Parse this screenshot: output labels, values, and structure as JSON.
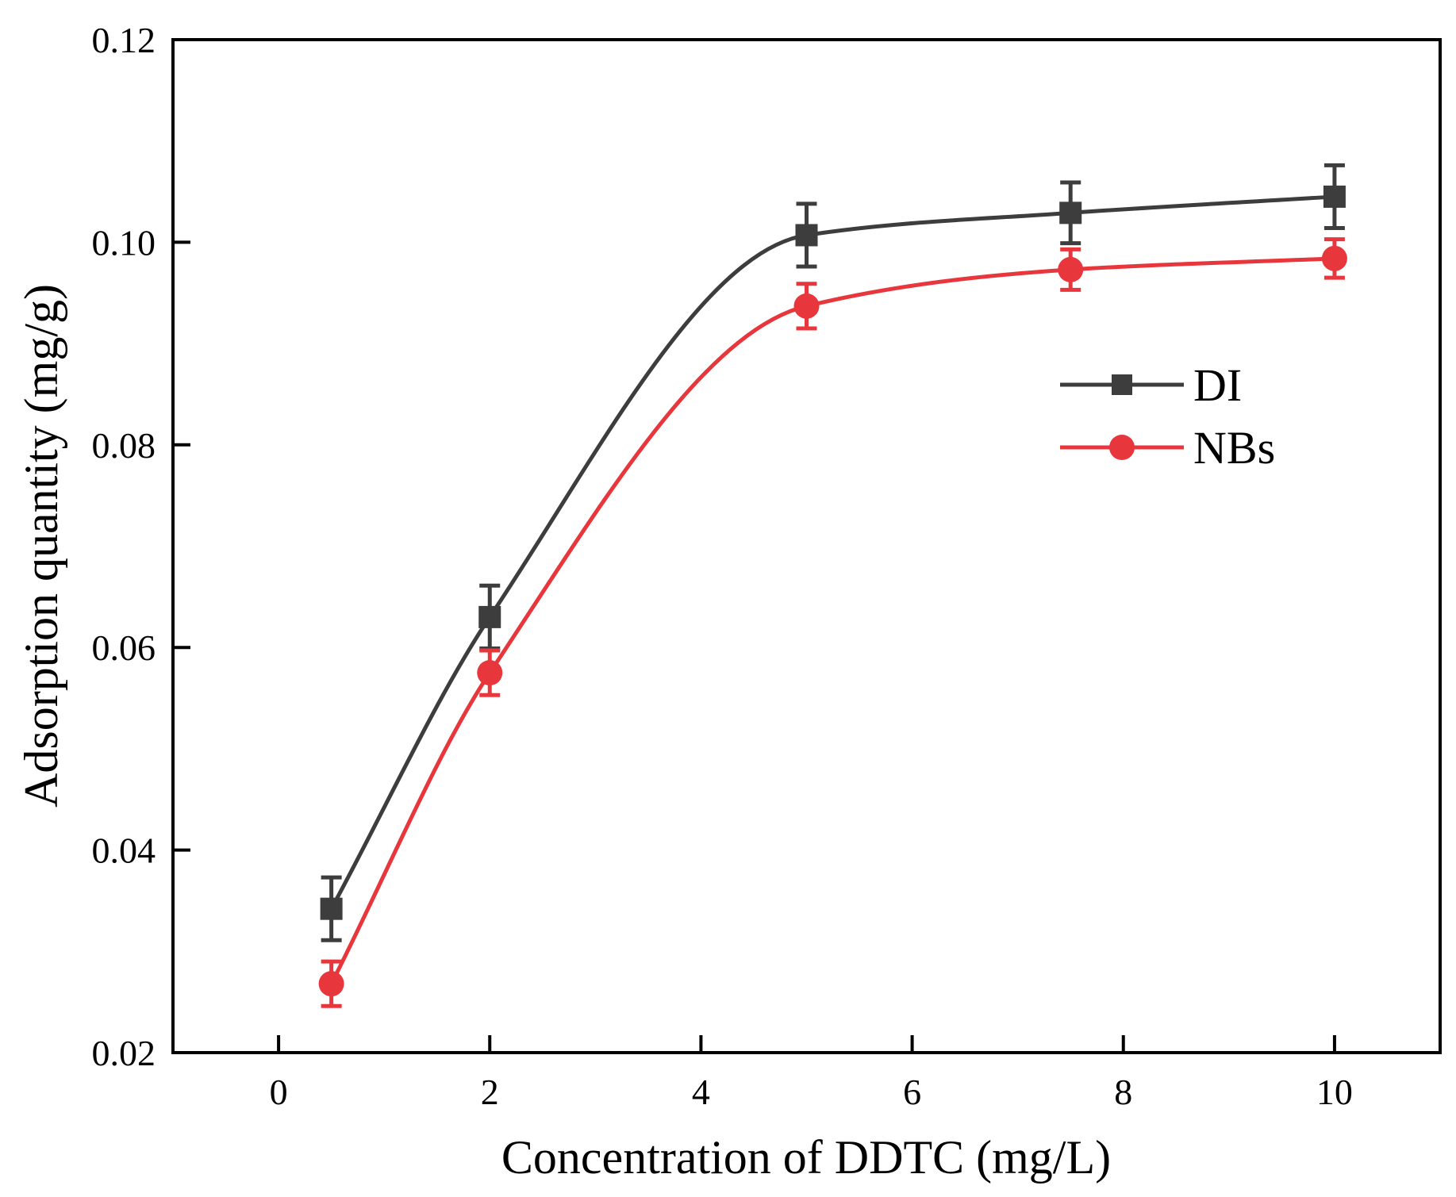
{
  "chart_data": {
    "type": "line",
    "title": "",
    "xlabel": "Concentration of DDTC (mg/L)",
    "ylabel": "Adsorption quantity (mg/g)",
    "xlim": [
      -1,
      11
    ],
    "ylim": [
      0.02,
      0.12
    ],
    "x_ticks": [
      0,
      2,
      4,
      6,
      8,
      10
    ],
    "x_tick_labels": [
      "0",
      "2",
      "4",
      "6",
      "8",
      "10"
    ],
    "y_ticks": [
      0.02,
      0.04,
      0.06,
      0.08,
      0.1,
      0.12
    ],
    "y_tick_labels": [
      "0.02",
      "0.04",
      "0.06",
      "0.08",
      "0.10",
      "0.12"
    ],
    "grid": false,
    "legend_position": "right",
    "smooth": true,
    "x": [
      0.5,
      2,
      5,
      7.5,
      10
    ],
    "series": [
      {
        "name": "DI",
        "color": "#3d3d3d",
        "marker": "square",
        "values": [
          0.0342,
          0.063,
          0.1007,
          0.1029,
          0.1045
        ],
        "errors": [
          0.0031,
          0.0031,
          0.0031,
          0.003,
          0.0031
        ]
      },
      {
        "name": "NBs",
        "color": "#e8373c",
        "marker": "circle",
        "values": [
          0.0268,
          0.0575,
          0.0937,
          0.0973,
          0.0984
        ],
        "errors": [
          0.0022,
          0.0022,
          0.0022,
          0.002,
          0.0019
        ]
      }
    ]
  }
}
